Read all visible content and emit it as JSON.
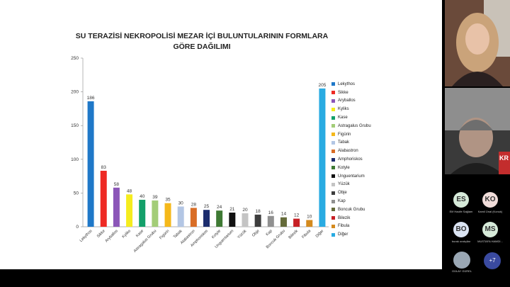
{
  "slide": {
    "title_line1": "SU TERAZİSİ NEKROPOLİSİ MEZAR İÇİ BULUNTULARININ FORMLARA",
    "title_line2": "GÖRE DAĞILIMI"
  },
  "chart_data": {
    "type": "bar",
    "title": "SU TERAZİSİ NEKROPOLİSİ MEZAR İÇİ BULUNTULARININ FORMLARA GÖRE DAĞILIMI",
    "categories": [
      "Lekythos",
      "Sikke",
      "Aryballos",
      "Kyliks",
      "Kase",
      "Astragalus Grubu",
      "Figürin",
      "Tabak",
      "Alabastron",
      "Amphoriskos",
      "Kotyle",
      "Unguentarium",
      "Yüzük",
      "Obje",
      "Kap",
      "Boncuk Grubu",
      "Bilezik",
      "Fibula",
      "Diğer"
    ],
    "values": [
      186,
      83,
      58,
      48,
      40,
      39,
      35,
      30,
      28,
      25,
      24,
      21,
      20,
      18,
      16,
      14,
      12,
      10,
      205
    ],
    "colors": [
      "#1f78c8",
      "#ee2a24",
      "#8b56b8",
      "#f5ec1e",
      "#14a06a",
      "#a3cd78",
      "#f5b81a",
      "#b3c6e4",
      "#d96d26",
      "#1c2d6e",
      "#3f7a34",
      "#111111",
      "#c4c4c4",
      "#3d3d3d",
      "#909090",
      "#656b3a",
      "#c72025",
      "#d48a1e",
      "#29abe2"
    ],
    "ylim": [
      0,
      250
    ],
    "yticks": [
      0,
      50,
      100,
      150,
      200,
      250
    ],
    "legend": "right",
    "grid": false
  },
  "participants": [
    {
      "initials": "ES",
      "name": "Elif Hacife Sağlam",
      "bg": "#d6ead9"
    },
    {
      "initials": "KO",
      "name": "Kamil Ünal (Konuk)",
      "bg": "#f0dcd9"
    },
    {
      "initials": "BO",
      "name": "burak orakçilar",
      "bg": "#dbe4f3"
    },
    {
      "initials": "MS",
      "name": "MUSTAFA HAMDİ...",
      "bg": "#d6ead9"
    }
  ],
  "last_participant": "GÜLAY GÜREL",
  "more_count": "+7",
  "video_tile_text": "KR"
}
